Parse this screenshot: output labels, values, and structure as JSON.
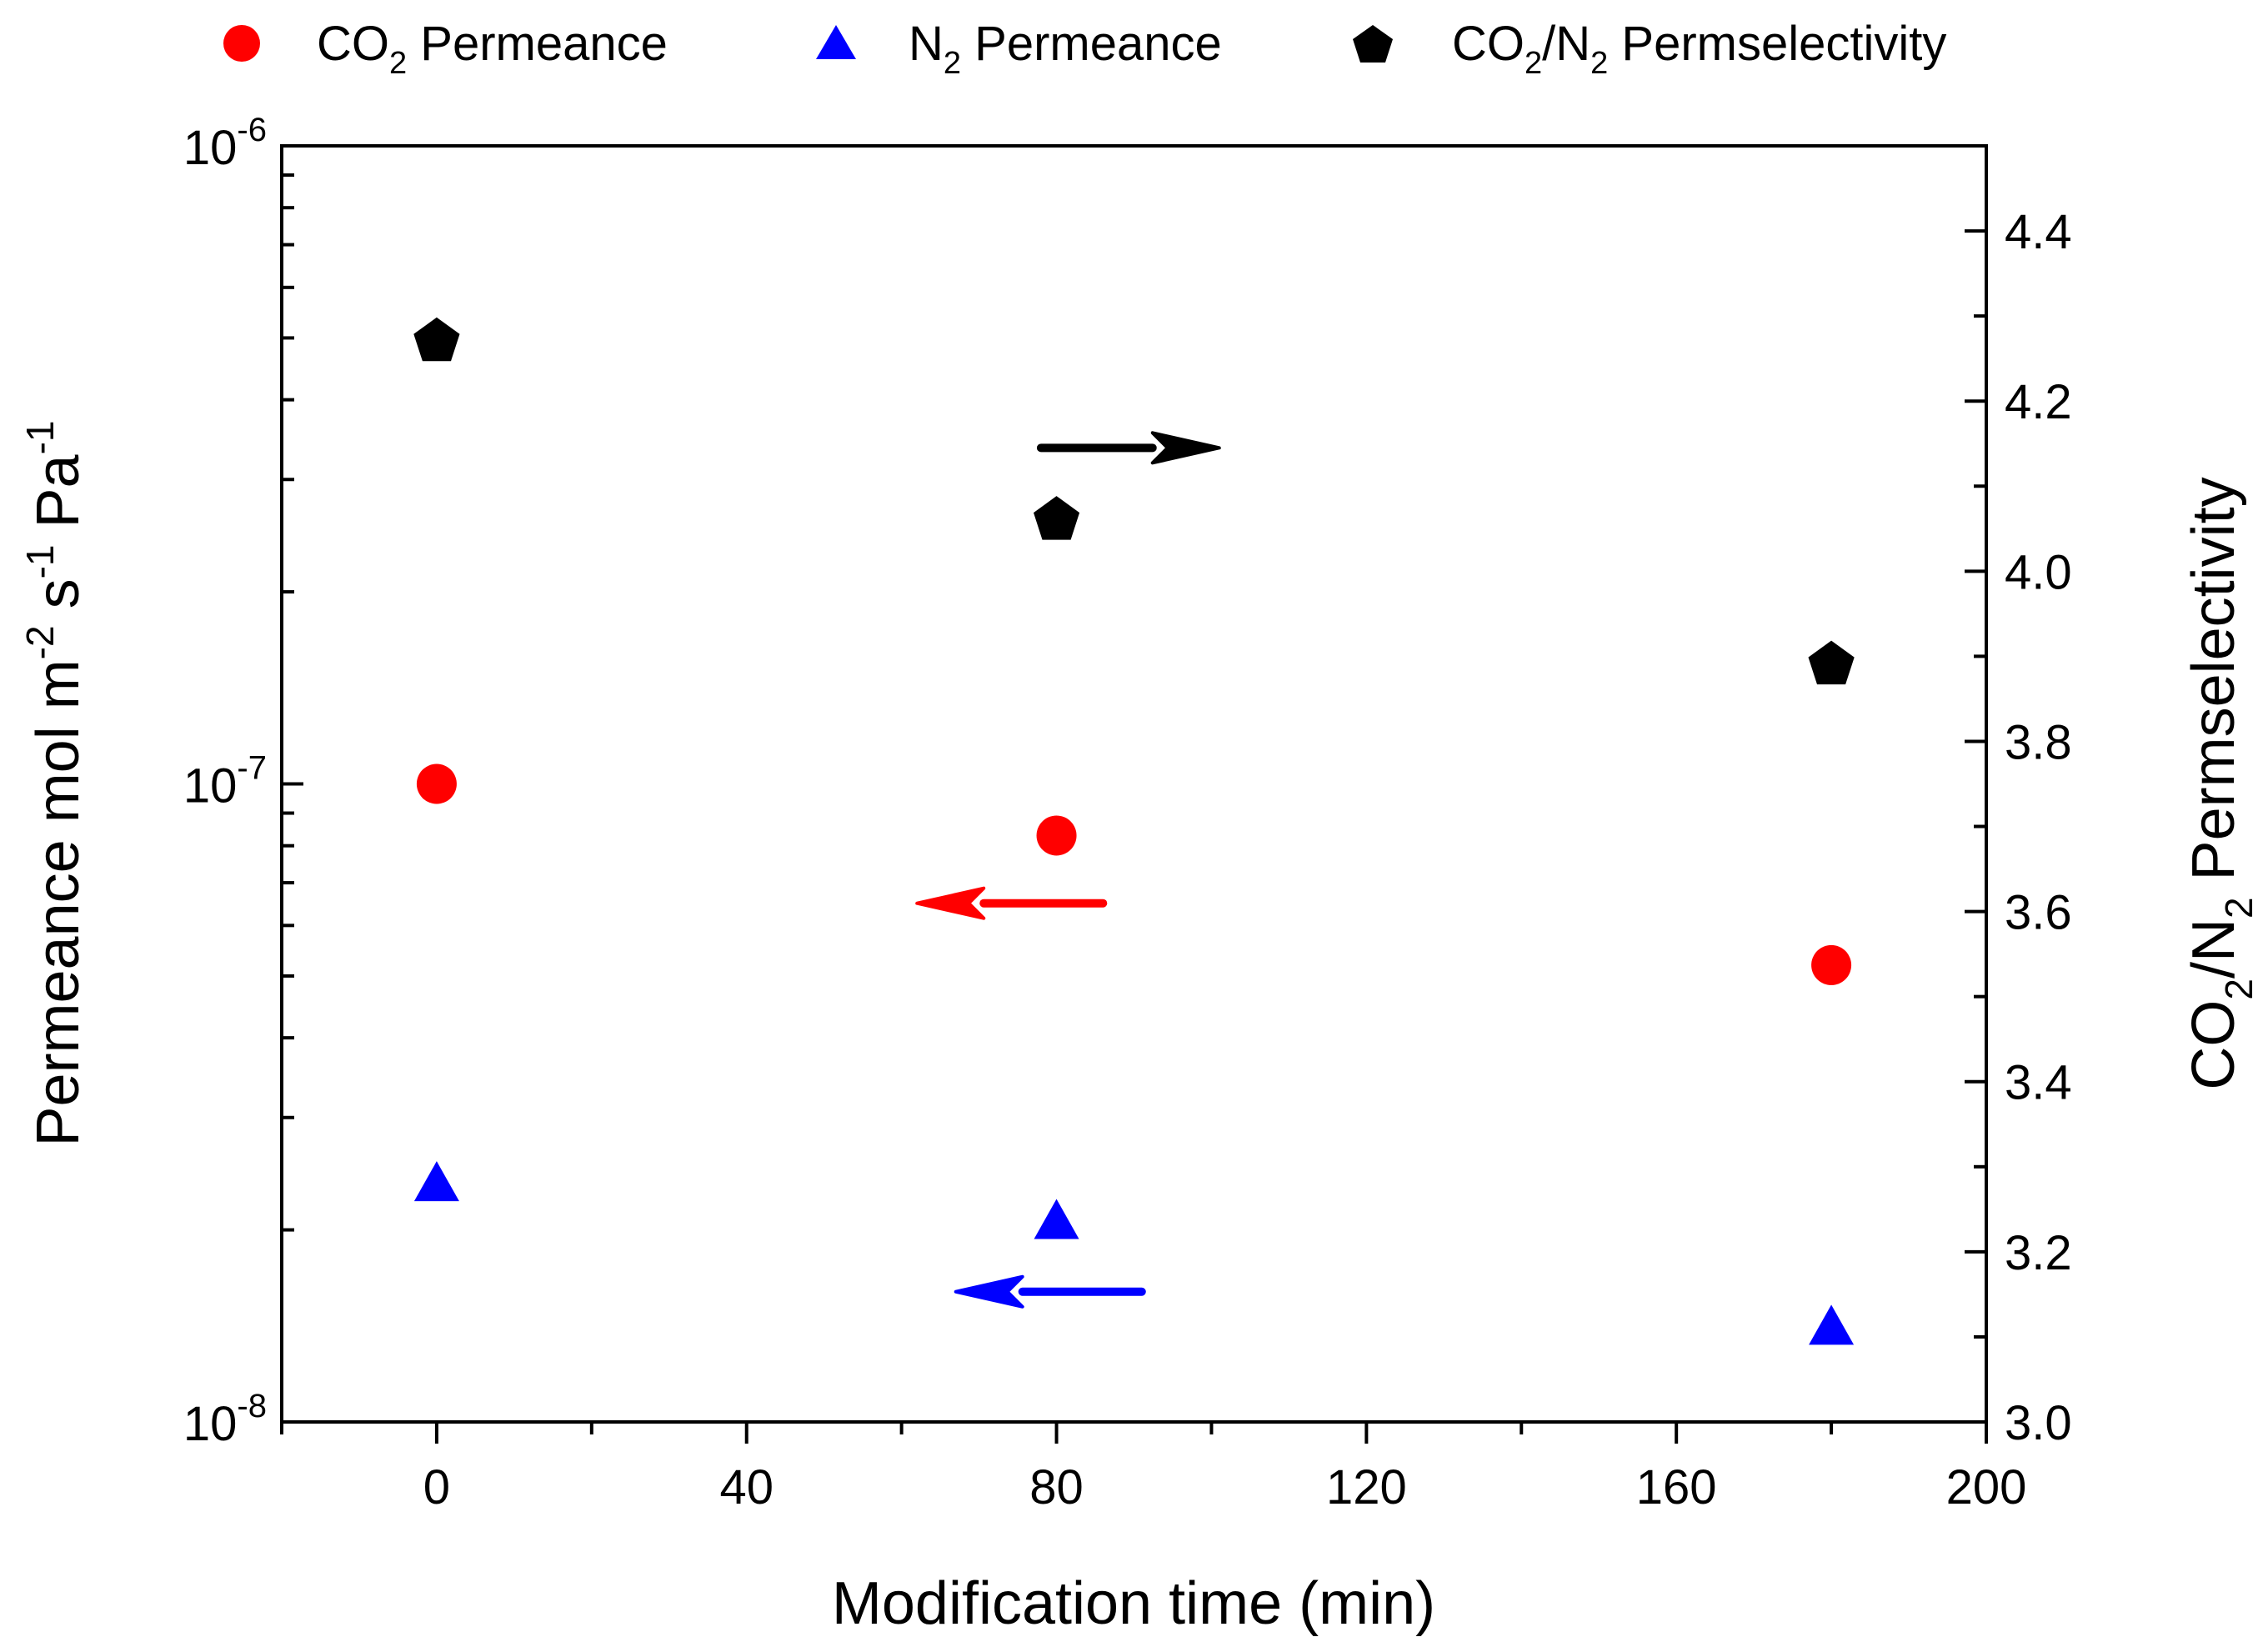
{
  "chart_data": {
    "type": "scatter",
    "title": "",
    "xlabel": "Modification time (min)",
    "ylabel_left": {
      "base": "Permeance mol m",
      "exp1": "-2",
      "mid1": " s",
      "exp2": "-1",
      "mid2": " Pa",
      "exp3": "-1"
    },
    "ylabel_right": {
      "a": "CO",
      "s1": "2",
      "b": "/N",
      "s2": "2",
      "c": " Permselectivity"
    },
    "xlim": [
      -20,
      200
    ],
    "xticks": [
      0,
      40,
      80,
      120,
      160,
      200
    ],
    "xtick_labels": [
      "0",
      "40",
      "80",
      "120",
      "160",
      "200"
    ],
    "ylim_left": [
      1e-08,
      1e-06
    ],
    "yscale_left": "log",
    "yticks_left": [
      {
        "value": 1e-08,
        "base": "10",
        "exp": "-8"
      },
      {
        "value": 1e-07,
        "base": "10",
        "exp": "-7"
      },
      {
        "value": 1e-06,
        "base": "10",
        "exp": "-6"
      }
    ],
    "ylim_right": [
      3.0,
      4.5
    ],
    "yticks_right": [
      3.0,
      3.2,
      3.4,
      3.6,
      3.8,
      4.0,
      4.2,
      4.4
    ],
    "ytick_labels_right": [
      "3.0",
      "3.2",
      "3.4",
      "3.6",
      "3.8",
      "4.0",
      "4.2",
      "4.4"
    ],
    "series": [
      {
        "name": "CO2 Permeance",
        "axis": "left",
        "marker": "circle",
        "color": "#ff0000",
        "x": [
          0,
          80,
          180
        ],
        "y": [
          1e-07,
          8.3e-08,
          5.2e-08
        ]
      },
      {
        "name": "N2 Permeance",
        "axis": "left",
        "marker": "triangle",
        "color": "#0000ff",
        "x": [
          0,
          80,
          180
        ],
        "y": [
          2.35e-08,
          2.05e-08,
          1.4e-08
        ]
      },
      {
        "name": "CO2/N2 Permselectivity",
        "axis": "right",
        "marker": "pentagon",
        "color": "#000000",
        "x": [
          0,
          80,
          180
        ],
        "y": [
          4.27,
          4.06,
          3.89
        ]
      }
    ],
    "legend": {
      "placement": "top",
      "items": [
        {
          "marker": "circle",
          "color": "#ff0000",
          "pre": "CO",
          "sub": "2",
          "post": " Permeance"
        },
        {
          "marker": "triangle",
          "color": "#0000ff",
          "pre": "N",
          "sub": "2",
          "post": " Permeance"
        },
        {
          "marker": "pentagon",
          "color": "#000000",
          "pre": "CO",
          "sub": "2",
          "mid": "/N",
          "sub2": "2",
          "post": " Permselectivity"
        }
      ]
    },
    "annotations": [
      {
        "type": "arrow",
        "direction": "right",
        "color": "#000000",
        "meaning": "right axis",
        "x_from": 78,
        "x_to": 101,
        "axis": "right",
        "y": 4.145
      },
      {
        "type": "arrow",
        "direction": "left",
        "color": "#ff0000",
        "meaning": "left axis",
        "x_from": 86,
        "x_to": 62,
        "axis": "left",
        "y": 6.5e-08
      },
      {
        "type": "arrow",
        "direction": "left",
        "color": "#0000ff",
        "meaning": "left axis",
        "x_from": 91,
        "x_to": 67,
        "axis": "left",
        "y": 1.6e-08
      }
    ]
  }
}
